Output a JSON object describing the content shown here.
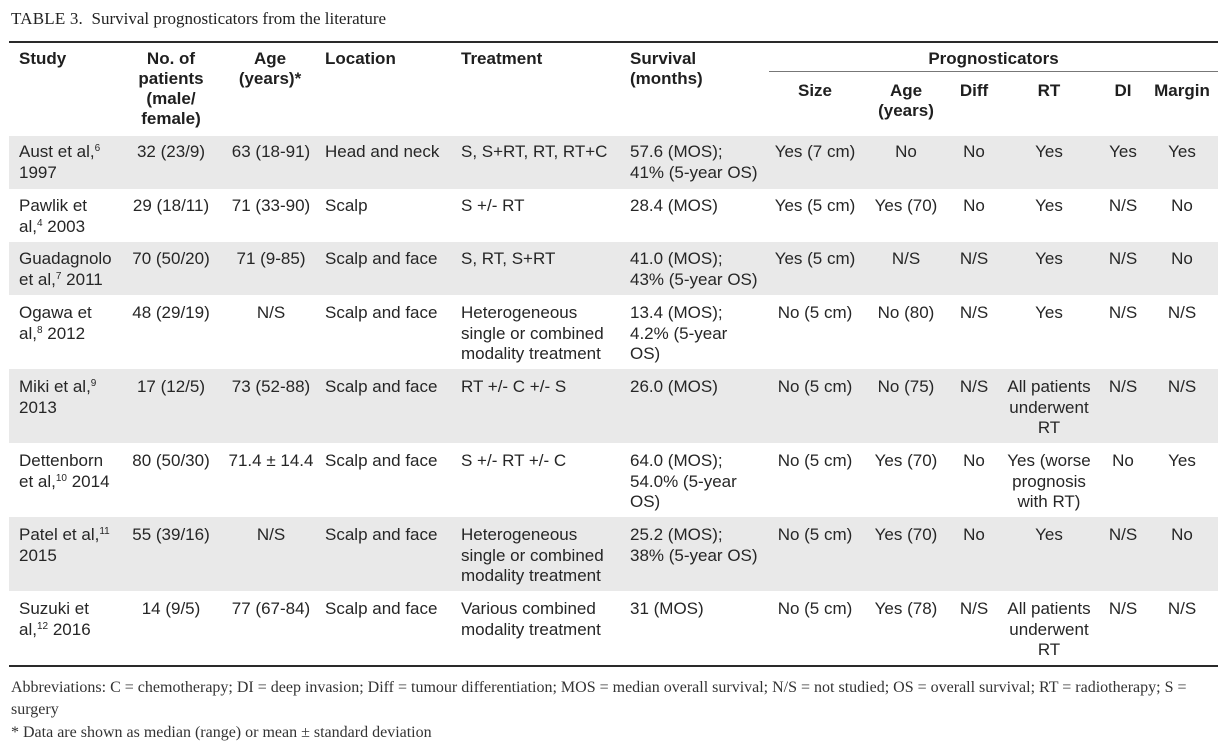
{
  "caption": {
    "label": "TABLE 3.",
    "title": "Survival prognosticators from the literature"
  },
  "headers": {
    "study": "Study",
    "patients": [
      "No. of",
      "patients",
      "(male/",
      "female)"
    ],
    "age": [
      "Age",
      "(years)*"
    ],
    "location": "Location",
    "treatment": "Treatment",
    "survival": [
      "Survival",
      "(months)"
    ],
    "prognosticators": "Prognosticators",
    "sub": {
      "size": "Size",
      "age": [
        "Age",
        "(years)"
      ],
      "diff": "Diff",
      "rt": "RT",
      "di": "DI",
      "margin": "Margin"
    }
  },
  "rows": [
    {
      "study": [
        "Aust et al,",
        "6",
        "1997"
      ],
      "patients": "32 (23/9)",
      "age": "63 (18-91)",
      "location": "Head and neck",
      "treatment": [
        "S, S+RT, RT, RT+C"
      ],
      "survival": [
        "57.6 (MOS);",
        "41% (5-year OS)"
      ],
      "size": "Yes (7 cm)",
      "p_age": "No",
      "diff": "No",
      "rt": [
        "Yes"
      ],
      "di": "Yes",
      "margin": "Yes"
    },
    {
      "study": [
        "Pawlik et",
        "al,",
        "4",
        "2003"
      ],
      "patients": "29 (18/11)",
      "age": "71 (33-90)",
      "location": "Scalp",
      "treatment": [
        "S +/- RT"
      ],
      "survival": [
        "28.4 (MOS)"
      ],
      "size": "Yes (5 cm)",
      "p_age": "Yes (70)",
      "diff": "No",
      "rt": [
        "Yes"
      ],
      "di": "N/S",
      "margin": "No"
    },
    {
      "study": [
        "Guadagnolo",
        "et al,",
        "7",
        "2011"
      ],
      "patients": "70 (50/20)",
      "age": "71 (9-85)",
      "location": "Scalp and face",
      "treatment": [
        "S, RT, S+RT"
      ],
      "survival": [
        "41.0 (MOS);",
        "43% (5-year OS)"
      ],
      "size": "Yes (5 cm)",
      "p_age": "N/S",
      "diff": "N/S",
      "rt": [
        "Yes"
      ],
      "di": "N/S",
      "margin": "No"
    },
    {
      "study": [
        "Ogawa et",
        "al,",
        "8",
        "2012"
      ],
      "patients": "48 (29/19)",
      "age": "N/S",
      "location": "Scalp and face",
      "treatment": [
        "Heterogeneous",
        "single or combined",
        "modality treatment"
      ],
      "survival": [
        "13.4 (MOS);",
        "4.2% (5-year",
        "OS)"
      ],
      "size": "No (5 cm)",
      "p_age": "No (80)",
      "diff": "N/S",
      "rt": [
        "Yes"
      ],
      "di": "N/S",
      "margin": "N/S"
    },
    {
      "study": [
        "Miki et al,",
        "9",
        "2013"
      ],
      "patients": "17 (12/5)",
      "age": "73 (52-88)",
      "location": "Scalp and face",
      "treatment": [
        "RT +/- C +/- S"
      ],
      "survival": [
        "26.0 (MOS)"
      ],
      "size": "No (5 cm)",
      "p_age": "No (75)",
      "diff": "N/S",
      "rt": [
        "All patients",
        "underwent",
        "RT"
      ],
      "di": "N/S",
      "margin": "N/S"
    },
    {
      "study": [
        "Dettenborn",
        "et al,",
        "10",
        "2014"
      ],
      "patients": "80 (50/30)",
      "age": "71.4 ± 14.4",
      "location": "Scalp and face",
      "treatment": [
        "S +/- RT +/- C"
      ],
      "survival": [
        "64.0 (MOS);",
        "54.0% (5-year",
        "OS)"
      ],
      "size": "No (5 cm)",
      "p_age": "Yes (70)",
      "diff": "No",
      "rt": [
        "Yes (worse",
        "prognosis",
        "with RT)"
      ],
      "di": "No",
      "margin": "Yes"
    },
    {
      "study": [
        "Patel et al,",
        "11",
        "2015"
      ],
      "patients": "55 (39/16)",
      "age": "N/S",
      "location": "Scalp and face",
      "treatment": [
        "Heterogeneous",
        "single or combined",
        "modality treatment"
      ],
      "survival": [
        "25.2 (MOS);",
        "38% (5-year OS)"
      ],
      "size": "No (5 cm)",
      "p_age": "Yes (70)",
      "diff": "No",
      "rt": [
        "Yes"
      ],
      "di": "N/S",
      "margin": "No"
    },
    {
      "study": [
        "Suzuki et",
        "al,",
        "12",
        "2016"
      ],
      "patients": "14 (9/5)",
      "age": "77 (67-84)",
      "location": "Scalp and face",
      "treatment": [
        "Various combined",
        "modality treatment"
      ],
      "survival": [
        "31 (MOS)"
      ],
      "size": "No (5 cm)",
      "p_age": "Yes (78)",
      "diff": "N/S",
      "rt": [
        "All patients",
        "underwent",
        "RT"
      ],
      "di": "N/S",
      "margin": "N/S"
    }
  ],
  "footnotes": {
    "abbreviations": "Abbreviations: C = chemotherapy; DI = deep invasion; Diff = tumour differentiation; MOS = median overall survival; N/S = not studied; OS = overall survival; RT = radiotherapy; S = surgery",
    "asterisk": "*   Data are shown as median (range) or mean ± standard deviation"
  }
}
